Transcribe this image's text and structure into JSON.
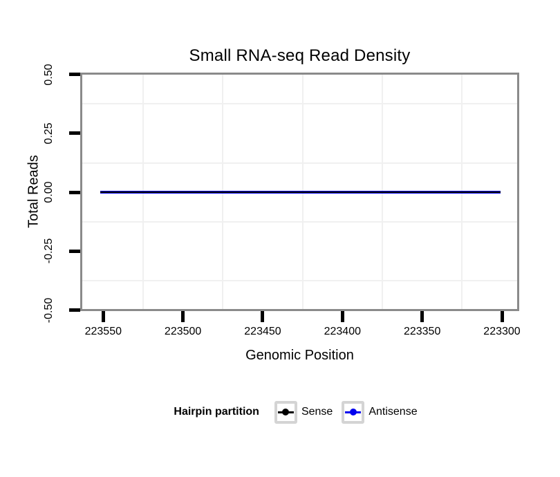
{
  "chart_data": {
    "type": "line",
    "title": "Small RNA-seq Read Density",
    "xlabel": "Genomic Position",
    "ylabel": "Total Reads",
    "x_tick_values": [
      223550,
      223500,
      223450,
      223400,
      223350,
      223300
    ],
    "x_tick_labels": [
      "223550",
      "223500",
      "223450",
      "223400",
      "223350",
      "223300"
    ],
    "x_axis_reversed": true,
    "y_tick_values": [
      0.5,
      0.25,
      0,
      -0.25,
      -0.5
    ],
    "y_tick_labels": [
      "0.50",
      "0.25",
      "0.00",
      "-0.25",
      "-0.50"
    ],
    "ylim": [
      -0.5,
      0.5
    ],
    "xlim": [
      223563,
      223290
    ],
    "grid": {
      "visible": "minor-only",
      "color": "#f0f0f0"
    },
    "series": [
      {
        "name": "Antisense",
        "color": "#0000ee",
        "x_start": 223552,
        "x_end": 223301,
        "y": 0
      },
      {
        "name": "Sense",
        "color": "#000000",
        "x_start": 223552,
        "x_end": 223301,
        "y": 0
      }
    ],
    "legend": {
      "title": "Hairpin partition",
      "position": "bottom",
      "items": [
        {
          "label": "Sense",
          "color": "#000000"
        },
        {
          "label": "Antisense",
          "color": "#0000ee"
        }
      ]
    }
  },
  "colors": {
    "background": "#ffffff",
    "panel_border": "#8a8a8a",
    "panel_background": "#ffffff",
    "gridline": "#f0f0f0",
    "tick": "#000000",
    "text": "#000000",
    "legend_key_border": "#d4d4d4"
  }
}
